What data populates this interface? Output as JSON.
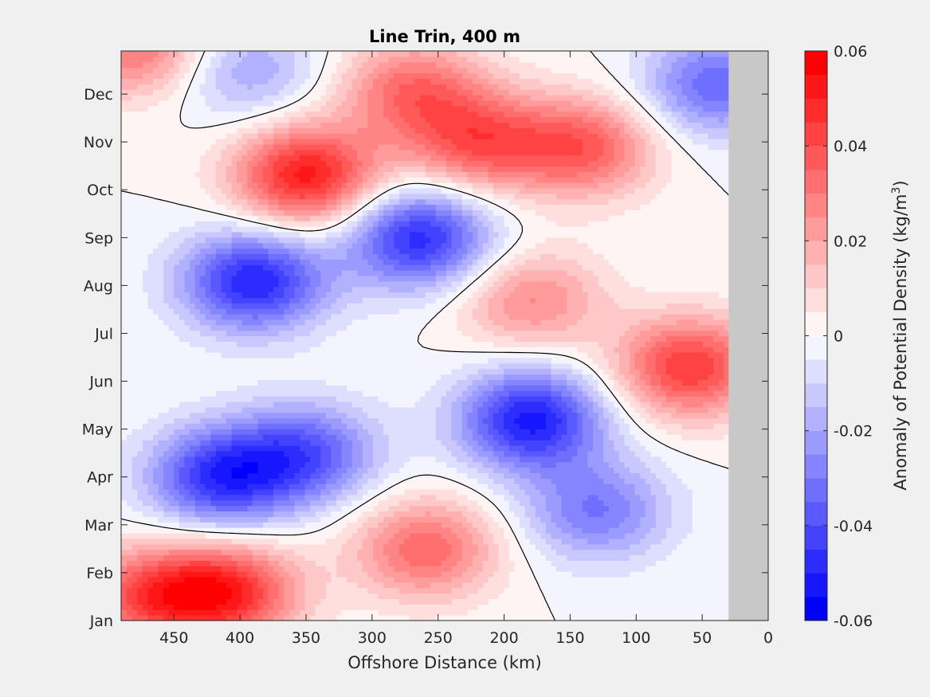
{
  "chart_data": {
    "type": "heatmap",
    "title": "Line Trin, 400 m",
    "xlabel": "Offshore Distance (km)",
    "x_reversed": true,
    "xlim": [
      0,
      490
    ],
    "x_ticks": [
      450,
      400,
      350,
      300,
      250,
      200,
      150,
      100,
      50,
      0
    ],
    "y_ticks": [
      {
        "label": "Jan",
        "value": 0
      },
      {
        "label": "Feb",
        "value": 1
      },
      {
        "label": "Mar",
        "value": 2
      },
      {
        "label": "Apr",
        "value": 3
      },
      {
        "label": "May",
        "value": 4
      },
      {
        "label": "Jun",
        "value": 5
      },
      {
        "label": "Jul",
        "value": 6
      },
      {
        "label": "Aug",
        "value": 7
      },
      {
        "label": "Sep",
        "value": 8
      },
      {
        "label": "Oct",
        "value": 9
      },
      {
        "label": "Nov",
        "value": 10
      },
      {
        "label": "Dec",
        "value": 11
      }
    ],
    "ylim": [
      0,
      11.9
    ],
    "no_data_x_range": [
      0,
      30
    ],
    "no_data_color": "#c8c8c8",
    "zero_contour_color": "#000000",
    "colorbar": {
      "label_prefix": "Anomaly of Potential Density (kg/m",
      "label_sup": "3",
      "label_suffix": ")",
      "clim": [
        -0.06,
        0.06
      ],
      "tick_values": [
        -0.06,
        -0.04,
        -0.02,
        0,
        0.02,
        0.04,
        0.06
      ],
      "tick_labels": [
        "-0.06",
        "-0.04",
        "-0.02",
        "0",
        "0.02",
        "0.04",
        "0.06"
      ],
      "levels": 24,
      "negative_color": "#0000ff",
      "positive_color": "#ff0000",
      "neutral_color": "#ffffff"
    },
    "features": [
      {
        "x": 390,
        "y": 7.1,
        "amp": -0.05
      },
      {
        "x": 415,
        "y": 3.0,
        "amp": -0.046
      },
      {
        "x": 350,
        "y": 3.5,
        "amp": -0.036
      },
      {
        "x": 265,
        "y": 8.0,
        "amp": -0.048
      },
      {
        "x": 180,
        "y": 4.2,
        "amp": -0.052
      },
      {
        "x": 130,
        "y": 2.3,
        "amp": -0.03
      },
      {
        "x": 350,
        "y": 9.3,
        "amp": 0.052
      },
      {
        "x": 220,
        "y": 10.0,
        "amp": 0.036
      },
      {
        "x": 140,
        "y": 9.9,
        "amp": 0.036
      },
      {
        "x": 410,
        "y": 0.6,
        "amp": 0.046
      },
      {
        "x": 260,
        "y": 1.5,
        "amp": 0.034
      },
      {
        "x": 60,
        "y": 5.3,
        "amp": 0.045
      },
      {
        "x": 180,
        "y": 6.7,
        "amp": 0.026
      },
      {
        "x": 270,
        "y": 11.1,
        "amp": 0.032
      },
      {
        "x": 480,
        "y": 12.0,
        "amp": 0.032
      },
      {
        "x": 395,
        "y": 11.5,
        "amp": -0.02
      },
      {
        "x": 40,
        "y": 11.2,
        "amp": -0.034
      },
      {
        "x": 470,
        "y": 0.5,
        "amp": 0.036
      }
    ]
  }
}
